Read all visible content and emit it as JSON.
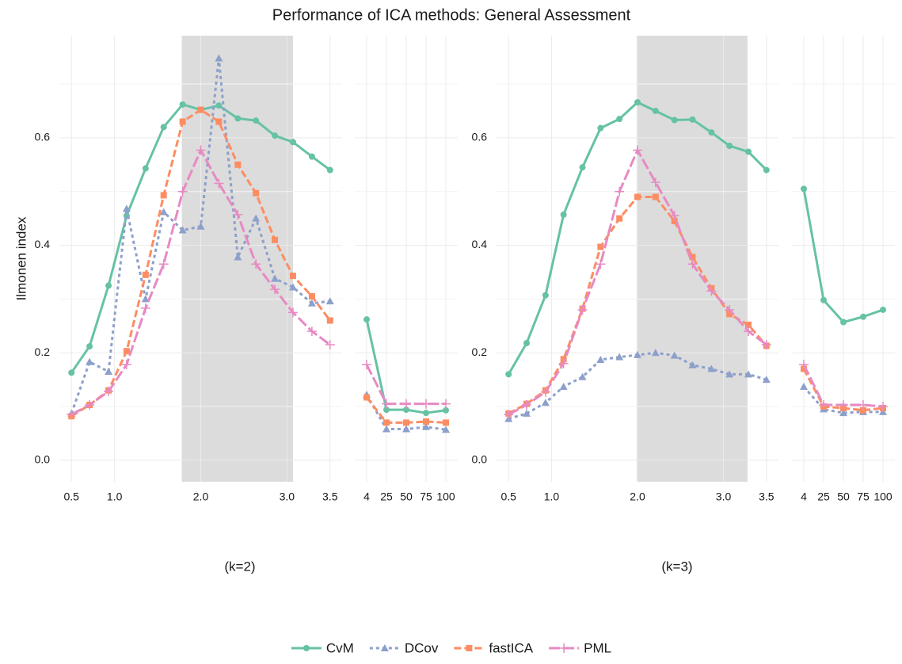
{
  "title": "Performance of ICA methods: General Assessment",
  "chart_data": [
    {
      "type": "line",
      "ylabel": "Ilmonen index",
      "xlabel": "(k=2)",
      "ytick_labels": true,
      "x": [
        0.5,
        0.71,
        0.93,
        1.14,
        1.36,
        1.57,
        1.79,
        2.0,
        2.21,
        2.43,
        2.64,
        2.86,
        3.07,
        3.29,
        3.5
      ],
      "xlim": [
        0.36,
        3.64
      ],
      "xticks": [
        0.5,
        {
          "value": 1,
          "label": "1.0"
        },
        {
          "value": 2,
          "label": "2.0"
        },
        {
          "value": 3,
          "label": "3.0"
        },
        3.5
      ],
      "ylim": [
        -0.04,
        0.79
      ],
      "yticks": [
        {
          "value": 0,
          "label": "0.0"
        },
        0.2,
        0.4,
        0.6
      ],
      "minor_yticks": [
        0.1,
        0.3,
        0.5,
        0.7
      ],
      "highlight": [
        1.78,
        3.07
      ],
      "series": [
        {
          "name": "CvM",
          "color": "#66c2a5",
          "dash": "none",
          "marker": "circle",
          "values": [
            0.163,
            0.212,
            0.325,
            0.455,
            0.543,
            0.62,
            0.662,
            0.652,
            0.66,
            0.636,
            0.632,
            0.604,
            0.592,
            0.565,
            0.54
          ]
        },
        {
          "name": "DCov",
          "color": "#8da0cb",
          "dash": "4,4",
          "marker": "triangle",
          "values": [
            0.087,
            0.183,
            0.165,
            0.468,
            0.3,
            0.462,
            0.428,
            0.435,
            0.748,
            0.378,
            0.45,
            0.338,
            0.322,
            0.292,
            0.296
          ]
        },
        {
          "name": "fastICA",
          "color": "#fc8d62",
          "dash": "9,4",
          "marker": "square",
          "values": [
            0.082,
            0.103,
            0.13,
            0.203,
            0.345,
            0.493,
            0.63,
            0.652,
            0.63,
            0.55,
            0.497,
            0.41,
            0.343,
            0.305,
            0.26
          ]
        },
        {
          "name": "PML",
          "color": "#e78ac3",
          "dash": "14,4",
          "marker": "plus",
          "values": [
            0.085,
            0.103,
            0.128,
            0.178,
            0.283,
            0.365,
            0.5,
            0.577,
            0.515,
            0.457,
            0.365,
            0.318,
            0.275,
            0.24,
            0.215
          ]
        }
      ]
    },
    {
      "type": "line",
      "categories": [
        "4",
        "25",
        "50",
        "75",
        "100"
      ],
      "ylim": [
        -0.04,
        0.79
      ],
      "yticks": [
        0,
        0.2,
        0.4,
        0.6
      ],
      "minor_yticks": [
        0.1,
        0.3,
        0.5,
        0.7
      ],
      "series": [
        {
          "color": "#66c2a5",
          "dash": "none",
          "marker": "circle",
          "values": [
            0.262,
            0.094,
            0.094,
            0.088,
            0.093
          ]
        },
        {
          "color": "#8da0cb",
          "dash": "4,4",
          "marker": "triangle",
          "values": [
            0.122,
            0.058,
            0.058,
            0.062,
            0.057
          ]
        },
        {
          "color": "#fc8d62",
          "dash": "9,4",
          "marker": "square",
          "values": [
            0.117,
            0.07,
            0.07,
            0.072,
            0.07
          ]
        },
        {
          "color": "#e78ac3",
          "dash": "14,4",
          "marker": "plus",
          "values": [
            0.178,
            0.105,
            0.105,
            0.105,
            0.105
          ]
        }
      ]
    },
    {
      "type": "line",
      "xlabel": "(k=3)",
      "ytick_labels": true,
      "x": [
        0.5,
        0.71,
        0.93,
        1.14,
        1.36,
        1.57,
        1.79,
        2.0,
        2.21,
        2.43,
        2.64,
        2.86,
        3.07,
        3.29,
        3.5
      ],
      "xlim": [
        0.36,
        3.64
      ],
      "xticks": [
        0.5,
        {
          "value": 1,
          "label": "1.0"
        },
        {
          "value": 2,
          "label": "2.0"
        },
        {
          "value": 3,
          "label": "3.0"
        },
        3.5
      ],
      "ylim": [
        -0.04,
        0.79
      ],
      "yticks": [
        {
          "value": 0,
          "label": "0.0"
        },
        0.2,
        0.4,
        0.6
      ],
      "minor_yticks": [
        0.1,
        0.3,
        0.5,
        0.7
      ],
      "highlight": [
        1.99,
        3.28
      ],
      "series": [
        {
          "color": "#66c2a5",
          "dash": "none",
          "marker": "circle",
          "values": [
            0.16,
            0.218,
            0.307,
            0.457,
            0.545,
            0.618,
            0.635,
            0.666,
            0.65,
            0.633,
            0.634,
            0.61,
            0.585,
            0.574,
            0.54
          ]
        },
        {
          "color": "#8da0cb",
          "dash": "4,4",
          "marker": "triangle",
          "values": [
            0.077,
            0.087,
            0.107,
            0.137,
            0.155,
            0.187,
            0.192,
            0.196,
            0.2,
            0.195,
            0.177,
            0.17,
            0.16,
            0.16,
            0.15
          ]
        },
        {
          "color": "#fc8d62",
          "dash": "9,4",
          "marker": "square",
          "values": [
            0.087,
            0.105,
            0.13,
            0.188,
            0.282,
            0.397,
            0.45,
            0.49,
            0.49,
            0.445,
            0.378,
            0.32,
            0.272,
            0.252,
            0.213
          ]
        },
        {
          "color": "#e78ac3",
          "dash": "14,4",
          "marker": "plus",
          "values": [
            0.085,
            0.103,
            0.127,
            0.18,
            0.28,
            0.365,
            0.5,
            0.577,
            0.517,
            0.455,
            0.365,
            0.315,
            0.28,
            0.24,
            0.215
          ]
        }
      ]
    },
    {
      "type": "line",
      "categories": [
        "4",
        "25",
        "50",
        "75",
        "100"
      ],
      "ylim": [
        -0.04,
        0.79
      ],
      "yticks": [
        0,
        0.2,
        0.4,
        0.6
      ],
      "minor_yticks": [
        0.1,
        0.3,
        0.5,
        0.7
      ],
      "series": [
        {
          "color": "#66c2a5",
          "dash": "none",
          "marker": "circle",
          "values": [
            0.505,
            0.298,
            0.257,
            0.267,
            0.28
          ]
        },
        {
          "color": "#8da0cb",
          "dash": "4,4",
          "marker": "triangle",
          "values": [
            0.137,
            0.095,
            0.088,
            0.09,
            0.09
          ]
        },
        {
          "color": "#fc8d62",
          "dash": "9,4",
          "marker": "square",
          "values": [
            0.17,
            0.1,
            0.097,
            0.093,
            0.097
          ]
        },
        {
          "color": "#e78ac3",
          "dash": "14,4",
          "marker": "plus",
          "values": [
            0.178,
            0.103,
            0.103,
            0.103,
            0.1
          ]
        }
      ]
    }
  ]
}
